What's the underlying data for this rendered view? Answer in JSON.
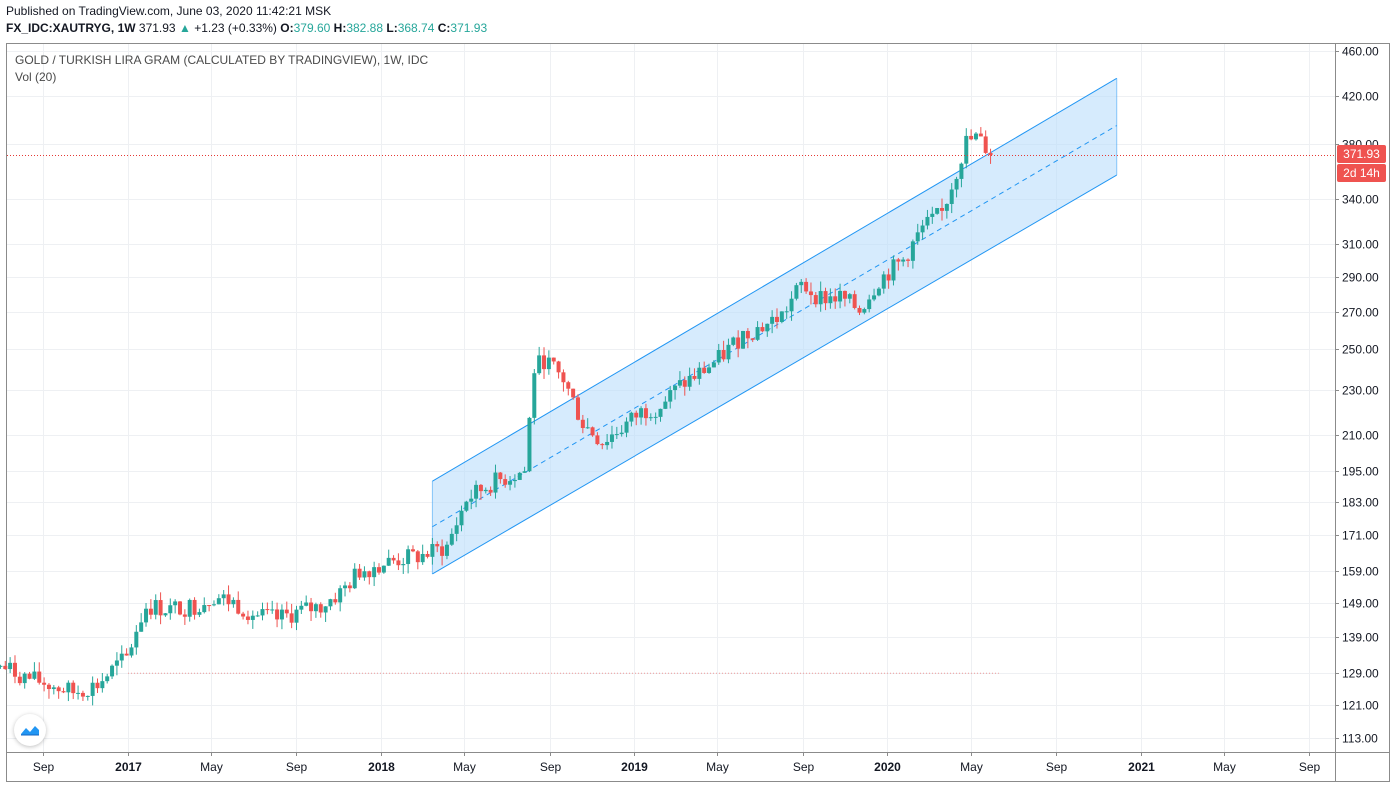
{
  "published": "Published on TradingView.com, June 03, 2020 11:42:21 MSK",
  "header": {
    "symbol": "FX_IDC:XAUTRYG, 1W",
    "last": "371.93",
    "change_arrow": "▲",
    "change": "+1.23 (+0.33%)",
    "o_label": "O:",
    "o": "379.60",
    "h_label": "H:",
    "h": "382.88",
    "l_label": "L:",
    "l": "368.74",
    "c_label": "C:",
    "c": "371.93"
  },
  "legend": {
    "title": "GOLD / TURKISH LIRA GRAM (CALCULATED BY TRADINGVIEW), 1W, IDC",
    "volume": "Vol (20)"
  },
  "price_tag": {
    "value": "371.93",
    "countdown": "2d 14h"
  },
  "colors": {
    "up": "#26a69a",
    "down": "#ef5350",
    "channel": "#2196f3",
    "channel_fill": "#bbdefb",
    "price_line": "#e53935"
  },
  "chart_data": {
    "type": "candlestick",
    "title": "GOLD / TURKISH LIRA GRAM (CALCULATED BY TRADINGVIEW), 1W, IDC",
    "y_axis": {
      "scale": "log",
      "ticks": [
        113,
        121,
        129,
        139,
        149,
        159,
        171,
        183,
        195,
        210,
        230,
        250,
        270,
        290,
        310,
        340,
        380,
        420,
        460
      ],
      "position": "right"
    },
    "x_axis": {
      "ticks": [
        "Sep",
        "2017",
        "May",
        "Sep",
        "2018",
        "May",
        "Sep",
        "2019",
        "May",
        "Sep",
        "2020",
        "May",
        "Sep",
        "2021",
        "May",
        "Sep"
      ]
    },
    "grid": true,
    "last_price": 371.93,
    "reference_line": 129,
    "close_anchors": [
      [
        "2016-07-01",
        131
      ],
      [
        "2016-08-05",
        128
      ],
      [
        "2016-09-09",
        126
      ],
      [
        "2016-10-14",
        124
      ],
      [
        "2016-11-18",
        126
      ],
      [
        "2016-12-16",
        131
      ],
      [
        "2016-12-30",
        133
      ],
      [
        "2017-01-13",
        141
      ],
      [
        "2017-01-27",
        148
      ],
      [
        "2017-03-03",
        147
      ],
      [
        "2017-04-07",
        148
      ],
      [
        "2017-05-05",
        151
      ],
      [
        "2017-06-02",
        149
      ],
      [
        "2017-07-07",
        145
      ],
      [
        "2017-08-04",
        144
      ],
      [
        "2017-09-01",
        146
      ],
      [
        "2017-10-06",
        148
      ],
      [
        "2017-11-03",
        152
      ],
      [
        "2017-12-01",
        159
      ],
      [
        "2017-12-29",
        161
      ],
      [
        "2018-02-02",
        163
      ],
      [
        "2018-03-02",
        164
      ],
      [
        "2018-04-06",
        167
      ],
      [
        "2018-05-04",
        184
      ],
      [
        "2018-06-08",
        190
      ],
      [
        "2018-07-06",
        193
      ],
      [
        "2018-07-27",
        195
      ],
      [
        "2018-08-10",
        240
      ],
      [
        "2018-08-24",
        245
      ],
      [
        "2018-09-21",
        235
      ],
      [
        "2018-10-19",
        215
      ],
      [
        "2018-11-16",
        207
      ],
      [
        "2018-12-14",
        213
      ],
      [
        "2019-01-11",
        220
      ],
      [
        "2019-02-08",
        223
      ],
      [
        "2019-03-08",
        232
      ],
      [
        "2019-04-05",
        238
      ],
      [
        "2019-05-03",
        245
      ],
      [
        "2019-06-07",
        258
      ],
      [
        "2019-07-05",
        262
      ],
      [
        "2019-08-02",
        268
      ],
      [
        "2019-08-30",
        285
      ],
      [
        "2019-09-27",
        278
      ],
      [
        "2019-10-25",
        278
      ],
      [
        "2019-11-22",
        271
      ],
      [
        "2019-12-20",
        288
      ],
      [
        "2020-01-24",
        300
      ],
      [
        "2020-02-21",
        320
      ],
      [
        "2020-03-20",
        330
      ],
      [
        "2020-04-10",
        360
      ],
      [
        "2020-04-24",
        382
      ],
      [
        "2020-05-08",
        385
      ],
      [
        "2020-05-22",
        378
      ],
      [
        "2020-06-03",
        371.93
      ]
    ],
    "regression_channel": {
      "start_date": "2018-03-16",
      "end_date": "2020-11-27",
      "mid_start": 174,
      "mid_end": 395,
      "upper_start": 191,
      "upper_end": 435,
      "lower_start": 158,
      "lower_end": 357
    }
  }
}
